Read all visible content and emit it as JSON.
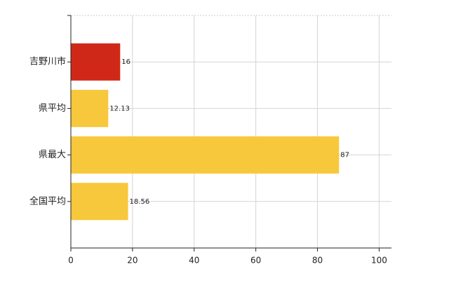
{
  "chart_data": {
    "type": "hbar",
    "categories": [
      "吉野川市",
      "県平均",
      "県最大",
      "全国平均"
    ],
    "values": [
      16,
      12.13,
      87,
      18.56
    ],
    "colors": [
      "#d02818",
      "#f8c83c",
      "#f8c83c",
      "#f8c83c"
    ],
    "xlim": [
      0,
      104
    ],
    "xticks": [
      0,
      20,
      40,
      60,
      80,
      100
    ],
    "grid": true
  }
}
